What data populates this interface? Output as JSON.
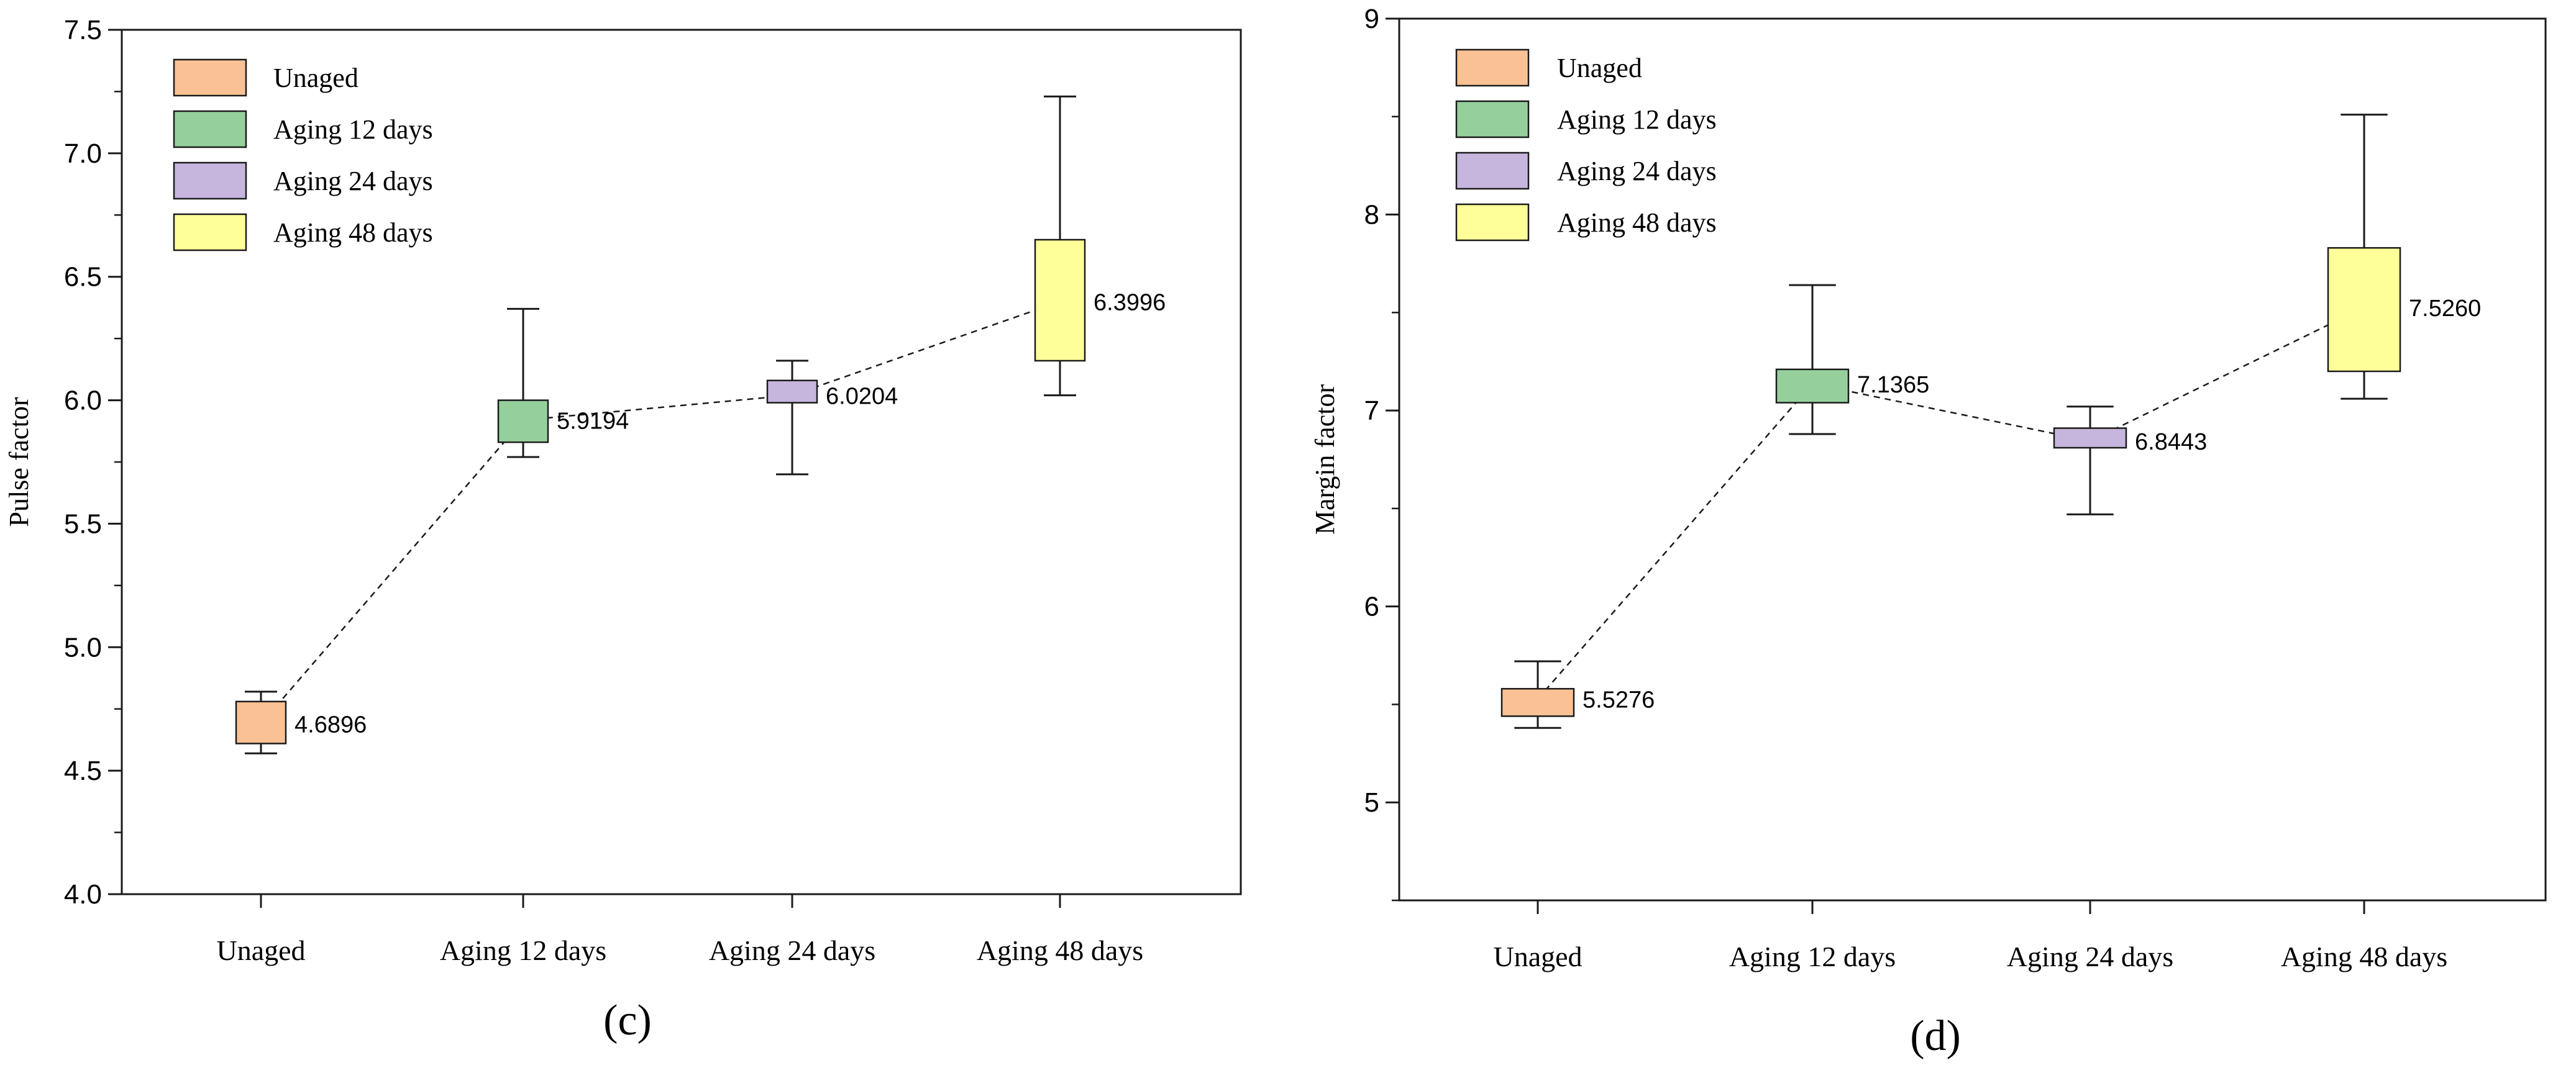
{
  "colors": {
    "unaged": "#f9c194",
    "aging12": "#95d09c",
    "aging24": "#c6b6de",
    "aging48": "#ffff99",
    "stroke": "#1a1a1a"
  },
  "chart_data": [
    {
      "type": "box",
      "panel_label": "(c)",
      "ylabel": "Pulse factor",
      "xlabel": "",
      "ylim": [
        4.0,
        7.5
      ],
      "yticks": [
        "4.0",
        "4.5",
        "5.0",
        "5.5",
        "6.0",
        "6.5",
        "7.0",
        "7.5"
      ],
      "categories": [
        "Unaged",
        "Aging 12 days",
        "Aging 24 days",
        "Aging 48 days"
      ],
      "legend": [
        "Unaged",
        "Aging 12 days",
        "Aging 24 days",
        "Aging 48 days"
      ],
      "legend_position": "top-left",
      "boxes": [
        {
          "whisker_low": 4.57,
          "q1": 4.61,
          "q3": 4.78,
          "whisker_high": 4.82,
          "mean": 4.6896,
          "mean_label": "4.6896"
        },
        {
          "whisker_low": 5.77,
          "q1": 5.83,
          "q3": 6.0,
          "whisker_high": 6.37,
          "mean": 5.9194,
          "mean_label": "5.9194"
        },
        {
          "whisker_low": 5.7,
          "q1": 5.99,
          "q3": 6.08,
          "whisker_high": 6.16,
          "mean": 6.0204,
          "mean_label": "6.0204"
        },
        {
          "whisker_low": 6.02,
          "q1": 6.16,
          "q3": 6.65,
          "whisker_high": 7.23,
          "mean": 6.3996,
          "mean_label": "6.3996"
        }
      ]
    },
    {
      "type": "box",
      "panel_label": "(d)",
      "ylabel": "Margin factor",
      "xlabel": "",
      "ylim": [
        4.5,
        9.0
      ],
      "yticks": [
        "5",
        "6",
        "7",
        "8",
        "9"
      ],
      "ytick_values": [
        5,
        6,
        7,
        8,
        9
      ],
      "categories": [
        "Unaged",
        "Aging 12 days",
        "Aging 24 days",
        "Aging 48 days"
      ],
      "legend": [
        "Unaged",
        "Aging 12 days",
        "Aging 24 days",
        "Aging 48 days"
      ],
      "legend_position": "top-left",
      "boxes": [
        {
          "whisker_low": 5.38,
          "q1": 5.44,
          "q3": 5.58,
          "whisker_high": 5.72,
          "mean": 5.5276,
          "mean_label": "5.5276"
        },
        {
          "whisker_low": 6.88,
          "q1": 7.04,
          "q3": 7.21,
          "whisker_high": 7.64,
          "mean": 7.1365,
          "mean_label": "7.1365"
        },
        {
          "whisker_low": 6.47,
          "q1": 6.81,
          "q3": 6.91,
          "whisker_high": 7.02,
          "mean": 6.8443,
          "mean_label": "6.8443"
        },
        {
          "whisker_low": 7.06,
          "q1": 7.2,
          "q3": 7.83,
          "whisker_high": 8.51,
          "mean": 7.526,
          "mean_label": "7.5260"
        }
      ]
    }
  ]
}
